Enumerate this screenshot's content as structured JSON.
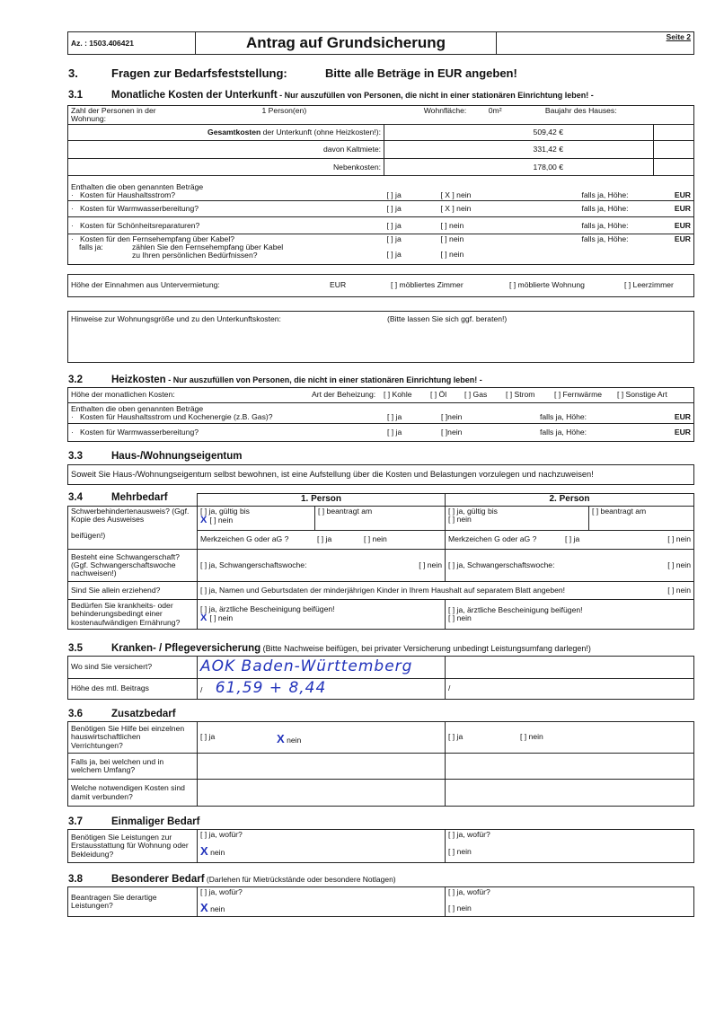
{
  "header": {
    "az": "Az. : 1503.406421",
    "title": "Antrag auf Grundsicherung",
    "page": "Seite 2"
  },
  "s3": {
    "num": "3.",
    "title": "Fragen zur Bedarfsfeststellung:",
    "note": "Bitte alle Beträge in EUR angeben!"
  },
  "s31": {
    "num": "3.1",
    "title": "Monatliche Kosten der Unterkunft",
    "note": " - Nur auszufüllen von Personen, die nicht in einer stationären Einrichtung leben! -",
    "persons_label": "Zahl der Personen in der Wohnung:",
    "persons": "1 Person(en)",
    "area_label": "Wohnfläche:",
    "area": "0m²",
    "year_label": "Baujahr des Hauses:",
    "total_bold": "Gesamtkosten",
    "total_label": " der Unterkunft (ohne Heizkosten!):",
    "total": "509,42 €",
    "cold_label": "davon Kaltmiete:",
    "cold": "331,42 €",
    "extra_label": "Nebenkosten:",
    "extra": "178,00 €",
    "contains": "Enthalten die oben genannten Beträge",
    "items": [
      {
        "label": "Kosten für Haushaltsstrom?",
        "ja": "[ ] ja",
        "nein": "[ X ] nein",
        "amount": "falls ja, Höhe:",
        "eur": "EUR"
      },
      {
        "label": "Kosten für Warmwasserbereitung?",
        "ja": "[ ] ja",
        "nein": "[ X ] nein",
        "amount": "falls ja, Höhe:",
        "eur": "EUR"
      },
      {
        "label": "Kosten für Schönheitsreparaturen?",
        "ja": "[ ] ja",
        "nein": "[ ] nein",
        "amount": "falls ja, Höhe:",
        "eur": "EUR"
      },
      {
        "label": "Kosten für den Fernsehempfang über Kabel?",
        "ja": "[ ] ja",
        "nein": "[ ] nein",
        "amount": "falls ja, Höhe:",
        "eur": "EUR"
      }
    ],
    "cable_if": "falls ja:",
    "cable_q1": "zählen Sie den Fernsehempfang über Kabel",
    "cable_q2": "zu Ihren persönlichen Bedürfnissen?",
    "cable_ja": "[ ] ja",
    "cable_nein": "[ ] nein",
    "sublet_label": "Höhe der Einnahmen aus Untervermietung:",
    "sublet_eur": "EUR",
    "sublet_opts": [
      "[ ] möbliertes Zimmer",
      "[ ] möblierte Wohnung",
      "[ ] Leerzimmer"
    ],
    "hint_label": "Hinweise zur Wohnungsgröße und zu den Unterkunftskosten:",
    "hint_note": "(Bitte lassen Sie sich ggf. beraten!)"
  },
  "s32": {
    "num": "3.2",
    "title": "Heizkosten",
    "note": " - Nur auszufüllen von Personen, die nicht in einer stationären Einrichtung leben! -",
    "monthly_label": "Höhe der monatlichen Kosten:",
    "type_label": "Art der Beheizung:",
    "types": [
      "[ ] Kohle",
      "[ ] Öl",
      "[ ] Gas",
      "[ ] Strom",
      "[ ] Fernwärme",
      "[ ] Sonstige Art"
    ],
    "contains": "Enthalten die oben genannten Beträge",
    "items": [
      {
        "label": "Kosten für Haushaltsstrom und Kochenergie (z.B. Gas)?",
        "ja": "[ ] ja",
        "nein": "[ ]nein",
        "amount": "falls ja, Höhe:",
        "eur": "EUR"
      },
      {
        "label": "Kosten für Warmwasserbereitung?",
        "ja": "[ ] ja",
        "nein": "[ ]nein",
        "amount": "falls ja, Höhe:",
        "eur": "EUR"
      }
    ]
  },
  "s33": {
    "num": "3.3",
    "title": "Haus-/Wohnungseigentum",
    "text": "Soweit Sie Haus-/Wohnungseigentum selbst bewohnen, ist eine Aufstellung über die Kosten und Belastungen vorzulegen und nachzuweisen!"
  },
  "s34": {
    "num": "3.4",
    "title": "Mehrbedarf",
    "p1": "1. Person",
    "p2": "2. Person",
    "disab_q": "Schwerbehindertenausweis? (Ggf. Kopie des Ausweises",
    "disab_q2": "beifügen!)",
    "valid": "[ ] ja, gültig bis",
    "no": "[ ] nein",
    "applied": "[ ] beantragt am",
    "mark_q": "Merkzeichen G oder aG ?",
    "ja": "[ ] ja",
    "nein": "[ ] nein",
    "preg_q": "Besteht eine Schwangerschaft?",
    "preg_q2": "(Ggf. Schwangerschaftswoche nachweisen!)",
    "preg_a": "[ ] ja, Schwangerschaftswoche:",
    "single_q": "Sind Sie allein erziehend?",
    "single_a": "[ ] ja, Namen und Geburtsdaten der minderjährigen Kinder in Ihrem Haushalt auf separatem Blatt angeben!",
    "diet_q": "Bedürfen Sie krankheits- oder behinderungsbedingt einer kostenaufwändigen Ernährung?",
    "diet_a": "[ ] ja, ärztliche Bescheinigung beifügen!"
  },
  "s35": {
    "num": "3.5",
    "title": "Kranken- / Pflegeversicherung",
    "note": " (Bitte Nachweise beifügen, bei privater Versicherung unbedingt Leistungsumfang darlegen!)",
    "where_q": "Wo sind Sie versichert?",
    "where_a": "AOK Baden-Württemberg",
    "fee_q": "Höhe des mtl. Beitrags",
    "slash": "/",
    "fee_a": "61,59 + 8,44"
  },
  "s36": {
    "num": "3.6",
    "title": "Zusatzbedarf",
    "q1": "Benötigen Sie Hilfe bei einzelnen hauswirtschaftlichen Verrichtungen?",
    "ja": "[ ] ja",
    "nein": "[ ] nein",
    "nein_checked": "nein",
    "q2": "Falls ja, bei welchen und in welchem Umfang?",
    "q3": "Welche notwendigen Kosten sind damit verbunden?"
  },
  "s37": {
    "num": "3.7",
    "title": "Einmaliger Bedarf",
    "q": "Benötigen Sie Leistungen zur Erstausstattung für Wohnung oder Bekleidung?",
    "ja": "[ ] ja, wofür?",
    "nein": "[ ] nein",
    "nein_checked": "nein"
  },
  "s38": {
    "num": "3.8",
    "title": "Besonderer Bedarf",
    "note": " (Darlehen für Mietrückstände oder besondere Notlagen)",
    "q": "Beantragen Sie derartige Leistungen?",
    "ja": "[ ] ja, wofür?",
    "nein": "[ ] nein",
    "nein_checked": "nein"
  },
  "marks": {
    "check": "X"
  }
}
